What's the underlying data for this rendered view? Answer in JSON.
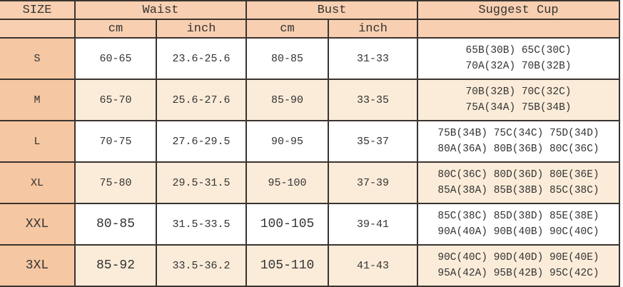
{
  "headers": {
    "size": "SIZE",
    "waist": "Waist",
    "bust": "Bust",
    "cup": "Suggest Cup",
    "cm": "cm",
    "inch": "inch"
  },
  "rows": [
    {
      "size": "S",
      "waist_cm": "60-65",
      "waist_inch": "23.6-25.6",
      "bust_cm": "80-85",
      "bust_inch": "31-33",
      "cup_line1": "65B(30B) 65C(30C)",
      "cup_line2": "70A(32A) 70B(32B)"
    },
    {
      "size": "M",
      "waist_cm": "65-70",
      "waist_inch": "25.6-27.6",
      "bust_cm": "85-90",
      "bust_inch": "33-35",
      "cup_line1": "70B(32B) 70C(32C)",
      "cup_line2": "75A(34A) 75B(34B)"
    },
    {
      "size": "L",
      "waist_cm": "70-75",
      "waist_inch": "27.6-29.5",
      "bust_cm": "90-95",
      "bust_inch": "35-37",
      "cup_line1": "75B(34B) 75C(34C) 75D(34D)",
      "cup_line2": "80A(36A) 80B(36B) 80C(36C)"
    },
    {
      "size": "XL",
      "waist_cm": "75-80",
      "waist_inch": "29.5-31.5",
      "bust_cm": "95-100",
      "bust_inch": "37-39",
      "cup_line1": "80C(36C) 80D(36D) 80E(36E)",
      "cup_line2": "85A(38A) 85B(38B) 85C(38C)"
    },
    {
      "size": "XXL",
      "waist_cm": "80-85",
      "waist_inch": "31.5-33.5",
      "bust_cm": "100-105",
      "bust_inch": "39-41",
      "cup_line1": "85C(38C) 85D(38D) 85E(38E)",
      "cup_line2": "90A(40A) 90B(40B) 90C(40C)"
    },
    {
      "size": "3XL",
      "waist_cm": "85-92",
      "waist_inch": "33.5-36.2",
      "bust_cm": "105-110",
      "bust_inch": "41-43",
      "cup_line1": "90C(40C) 90D(40D) 90E(40E)",
      "cup_line2": "95A(42A) 95B(42B) 95C(42C)"
    }
  ],
  "colors": {
    "header": "#f8cfb0",
    "size_column": "#f5c7a2",
    "alt_row": "#fbecd9",
    "border": "#3a3430"
  }
}
